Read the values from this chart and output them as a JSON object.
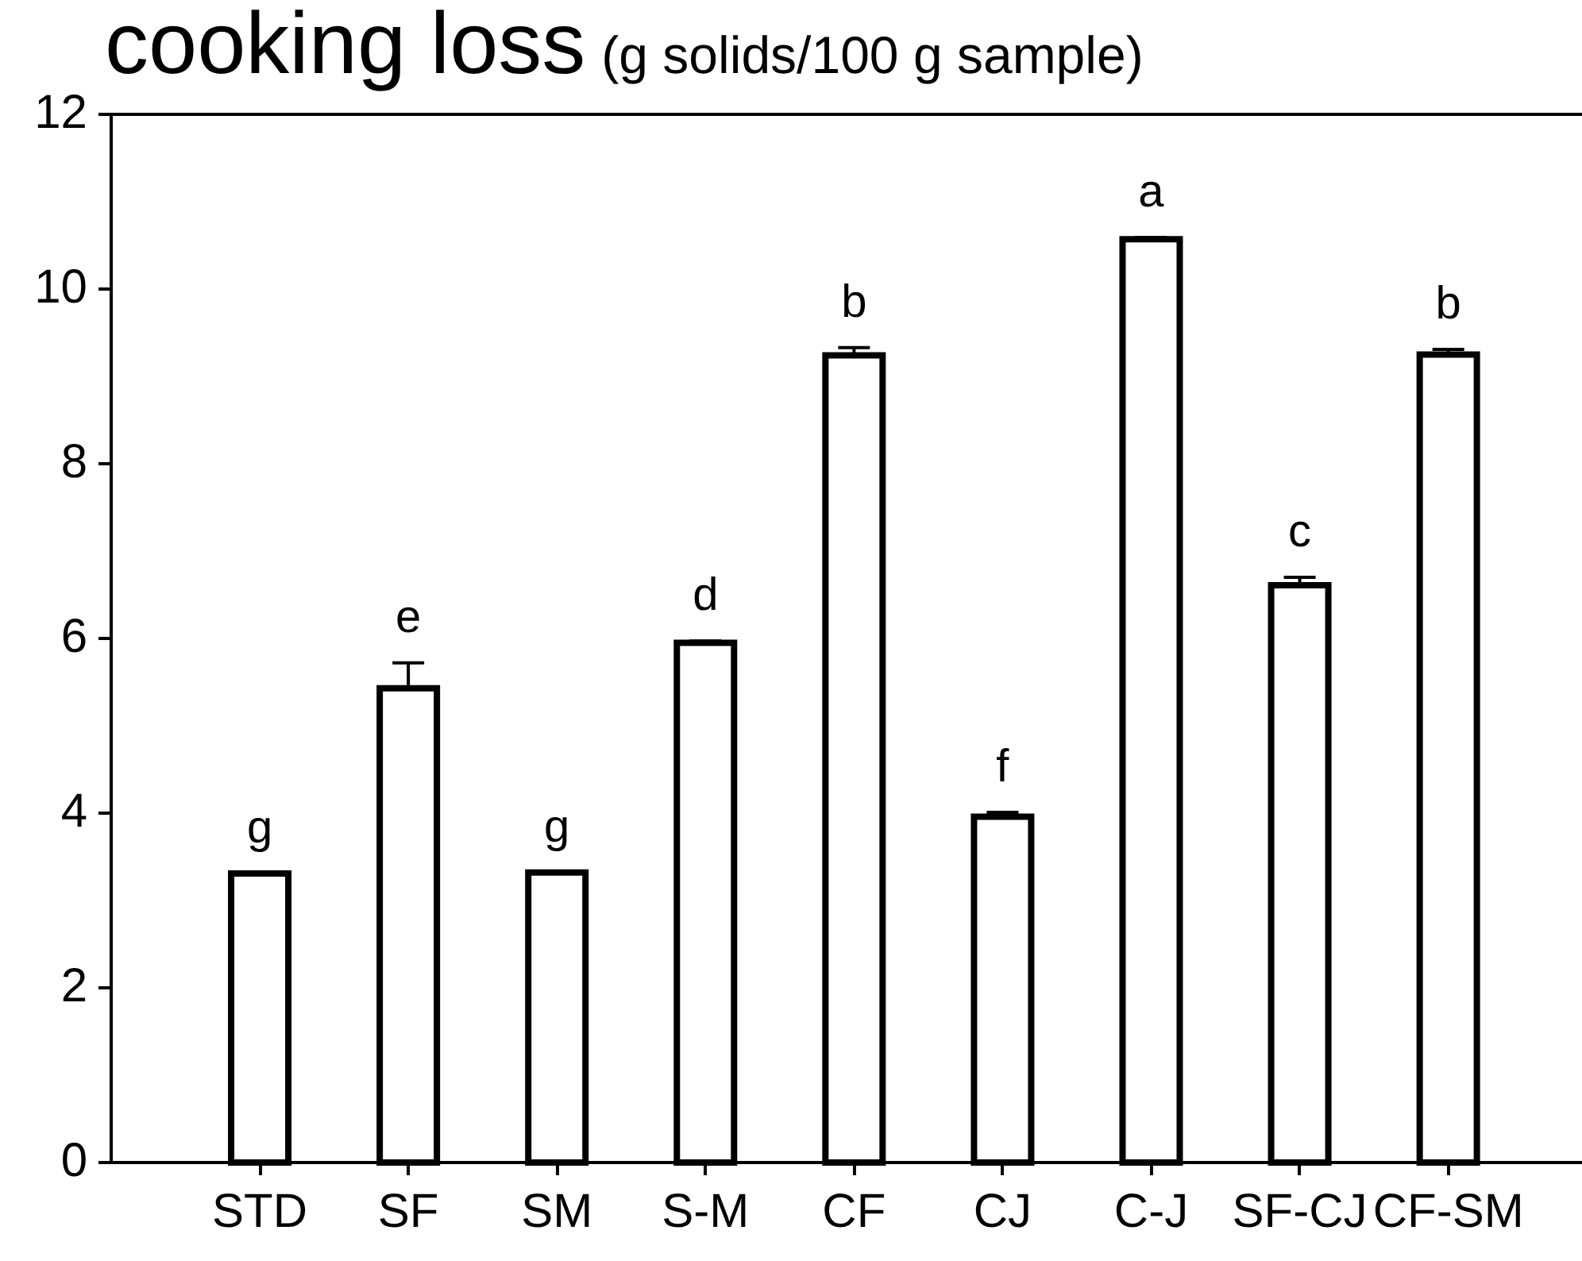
{
  "chart_data": {
    "type": "bar",
    "title": "cooking loss",
    "subtitle": "(g solids/100 g sample)",
    "categories": [
      "STD",
      "SF",
      "SM",
      "S-M",
      "CF",
      "CJ",
      "C-J",
      "SF-CJ",
      "CF-SM"
    ],
    "values": [
      3.31,
      5.43,
      3.32,
      5.95,
      9.24,
      3.96,
      10.57,
      6.61,
      9.25
    ],
    "errors": [
      null,
      [
        5.43,
        5.72
      ],
      null,
      [
        5.95,
        5.97
      ],
      [
        9.24,
        9.33
      ],
      [
        3.96,
        4.01
      ],
      [
        10.57,
        10.59
      ],
      [
        6.61,
        6.7
      ],
      [
        9.25,
        9.31
      ]
    ],
    "value_labels": [
      "g",
      "e",
      "g",
      "d",
      "b",
      "f",
      "a",
      "c",
      "b"
    ],
    "color": "#000000",
    "ylim": [
      0,
      12
    ],
    "yticks": [
      0,
      2,
      4,
      6,
      8,
      10,
      12
    ]
  }
}
